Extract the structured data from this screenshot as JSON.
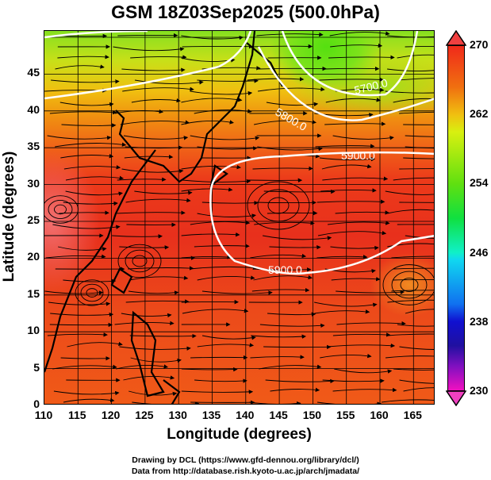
{
  "title": "GSM 18Z03Sep2025 (500.0hPa)",
  "axes": {
    "xlabel": "Longitude (degrees)",
    "ylabel": "Latitude  (degrees)",
    "xticks": [
      "110",
      "115",
      "120",
      "125",
      "130",
      "135",
      "140",
      "145",
      "150",
      "155",
      "160",
      "165"
    ],
    "yticks": [
      "0",
      "5",
      "10",
      "15",
      "20",
      "25",
      "30",
      "35",
      "40",
      "45"
    ]
  },
  "contour_labels": [
    "5700.0",
    "5800.0",
    "5900.0",
    "5900.0"
  ],
  "colorbar": {
    "ticks": [
      "270",
      "262",
      "254",
      "246",
      "238",
      "230"
    ],
    "min": 230,
    "max": 270
  },
  "credits": [
    "Drawing by DCL (https://www.gfd-dennou.org/library/dcl/)",
    "Data from http://database.rish.kyoto-u.ac.jp/arch/jmadata/"
  ]
}
